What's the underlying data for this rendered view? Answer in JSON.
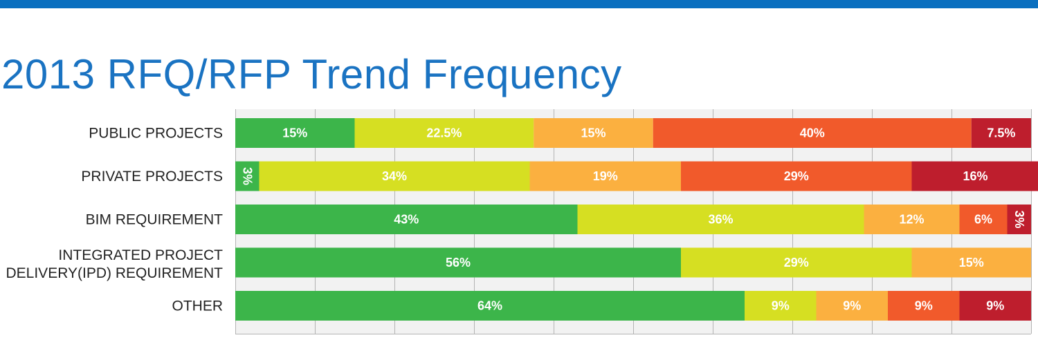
{
  "title": "2013 RFQ/RFP Trend Frequency",
  "chart_data": {
    "type": "bar",
    "orientation": "horizontal",
    "stacked": true,
    "title": "2013 RFQ/RFP Trend Frequency",
    "xlim": [
      0,
      100
    ],
    "grid": true,
    "legend": "none",
    "categories": [
      [
        "PUBLIC PROJECTS"
      ],
      [
        "PRIVATE PROJECTS"
      ],
      [
        "BIM REQUIREMENT"
      ],
      [
        "INTEGRATED PROJECT",
        "DELIVERY(IPD) REQUIREMENT"
      ],
      [
        "OTHER"
      ]
    ],
    "segment_colors": [
      "#3cb54a",
      "#d6df22",
      "#fbb040",
      "#f15a2b",
      "#be1e2d"
    ],
    "rows": [
      {
        "values": [
          15,
          22.5,
          15,
          40,
          7.5
        ],
        "labels": [
          "15%",
          "22.5%",
          "15%",
          "40%",
          "7.5%"
        ]
      },
      {
        "values": [
          3,
          34,
          19,
          29,
          16
        ],
        "labels": [
          "3%",
          "34%",
          "19%",
          "29%",
          "16%"
        ]
      },
      {
        "values": [
          43,
          36,
          12,
          6,
          3
        ],
        "labels": [
          "43%",
          "36%",
          "12%",
          "6%",
          "3%"
        ]
      },
      {
        "values": [
          56,
          29,
          15,
          0,
          0
        ],
        "labels": [
          "56%",
          "29%",
          "15%",
          "",
          ""
        ]
      },
      {
        "values": [
          64,
          9,
          9,
          9,
          9
        ],
        "labels": [
          "64%",
          "9%",
          "9%",
          "9%",
          "9%"
        ]
      }
    ]
  }
}
